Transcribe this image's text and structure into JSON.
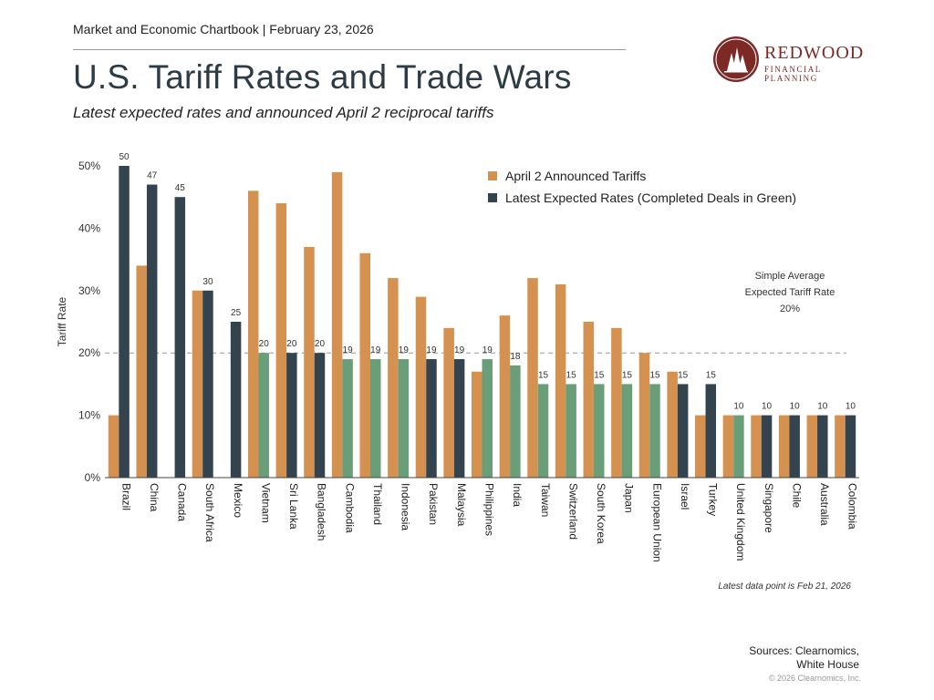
{
  "header": {
    "chartbook": "Market and Economic Chartbook | February 23, 2026",
    "title": "U.S. Tariff Rates and Trade Wars",
    "subtitle": "Latest expected rates and announced April 2 reciprocal tariffs"
  },
  "logo": {
    "name": "REDWOOD",
    "tagline": "FINANCIAL PLANNING"
  },
  "footer": {
    "note": "Latest data point is Feb 21, 2026",
    "sources_line1": "Sources: Clearnomics,",
    "sources_line2": "White House",
    "copyright": "© 2026 Clearnomics, Inc."
  },
  "chart_data": {
    "type": "bar",
    "ylabel": "Tariff Rate",
    "ylim": [
      0,
      50
    ],
    "yticks": [
      "0%",
      "10%",
      "20%",
      "30%",
      "40%",
      "50%"
    ],
    "categories": [
      "Brazil",
      "China",
      "Canada",
      "South Africa",
      "Mexico",
      "Vietnam",
      "Sri Lanka",
      "Bangladesh",
      "Cambodia",
      "Thailand",
      "Indonesia",
      "Pakistan",
      "Malaysia",
      "Philippines",
      "India",
      "Taiwan",
      "Switzerland",
      "South Korea",
      "Japan",
      "European Union",
      "Israel",
      "Turkey",
      "United Kingdom",
      "Singapore",
      "Chile",
      "Australia",
      "Colombia"
    ],
    "series": [
      {
        "name": "April 2 Announced Tariffs",
        "color": "#d4914f",
        "values": [
          10,
          34,
          null,
          30,
          null,
          46,
          44,
          37,
          49,
          36,
          32,
          29,
          24,
          17,
          26,
          32,
          31,
          25,
          24,
          20,
          17,
          10,
          10,
          10,
          10,
          10,
          10
        ]
      },
      {
        "name": "Latest Expected Rates (Completed Deals in Green)",
        "color": "#34444f",
        "deal_color": "#6a9e78",
        "values": [
          50,
          47,
          45,
          30,
          25,
          20,
          20,
          20,
          19,
          19,
          19,
          19,
          19,
          19,
          18,
          15,
          15,
          15,
          15,
          15,
          15,
          15,
          10,
          10,
          10,
          10,
          10
        ],
        "completed_deal": [
          false,
          false,
          false,
          false,
          false,
          true,
          false,
          false,
          true,
          true,
          true,
          false,
          false,
          true,
          true,
          true,
          true,
          true,
          true,
          true,
          false,
          false,
          true,
          false,
          false,
          false,
          false
        ]
      }
    ],
    "average": {
      "value": 20,
      "label_line1": "Simple Average",
      "label_line2": "Expected Tariff Rate",
      "label_line3": "20%"
    },
    "legend_position": "top-right",
    "grid": false
  }
}
